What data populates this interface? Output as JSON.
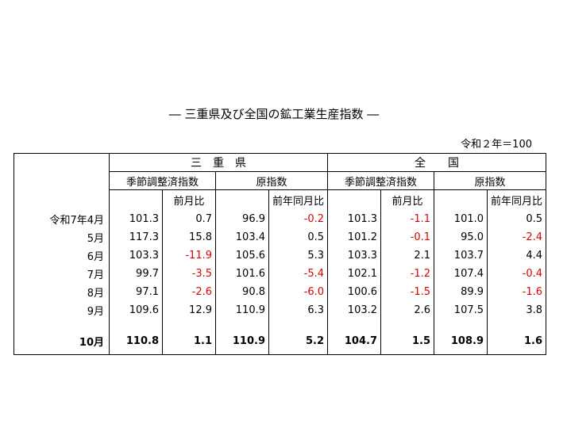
{
  "title": "― 三重県及び全国の鉱工業生産指数 ―",
  "note": "令和２年＝100",
  "table": {
    "groups": [
      "三　重　県",
      "全　　国"
    ],
    "subgroups": [
      "季節調整済指数",
      "原指数",
      "季節調整済指数",
      "原指数"
    ],
    "changes": [
      "前月比",
      "前年同月比",
      "前月比",
      "前年同月比"
    ],
    "rows": [
      {
        "label": "令和7年4月",
        "values": [
          "101.3",
          "0.7",
          "96.9",
          "-0.2",
          "101.3",
          "-1.1",
          "101.0",
          "0.5"
        ]
      },
      {
        "label": "5月",
        "values": [
          "117.3",
          "15.8",
          "103.4",
          "0.5",
          "101.2",
          "-0.1",
          "95.0",
          "-2.4"
        ]
      },
      {
        "label": "6月",
        "values": [
          "103.3",
          "-11.9",
          "105.6",
          "5.3",
          "103.3",
          "2.1",
          "103.7",
          "4.4"
        ]
      },
      {
        "label": "7月",
        "values": [
          "99.7",
          "-3.5",
          "101.6",
          "-5.4",
          "102.1",
          "-1.2",
          "107.4",
          "-0.4"
        ]
      },
      {
        "label": "8月",
        "values": [
          "97.1",
          "-2.6",
          "90.8",
          "-6.0",
          "100.6",
          "-1.5",
          "89.9",
          "-1.6"
        ]
      },
      {
        "label": "9月",
        "values": [
          "109.6",
          "12.9",
          "110.9",
          "6.3",
          "103.2",
          "2.6",
          "107.5",
          "3.8"
        ]
      },
      {
        "label": "10月",
        "values": [
          "110.8",
          "1.1",
          "110.9",
          "5.2",
          "104.7",
          "1.5",
          "108.9",
          "1.6"
        ]
      }
    ]
  }
}
